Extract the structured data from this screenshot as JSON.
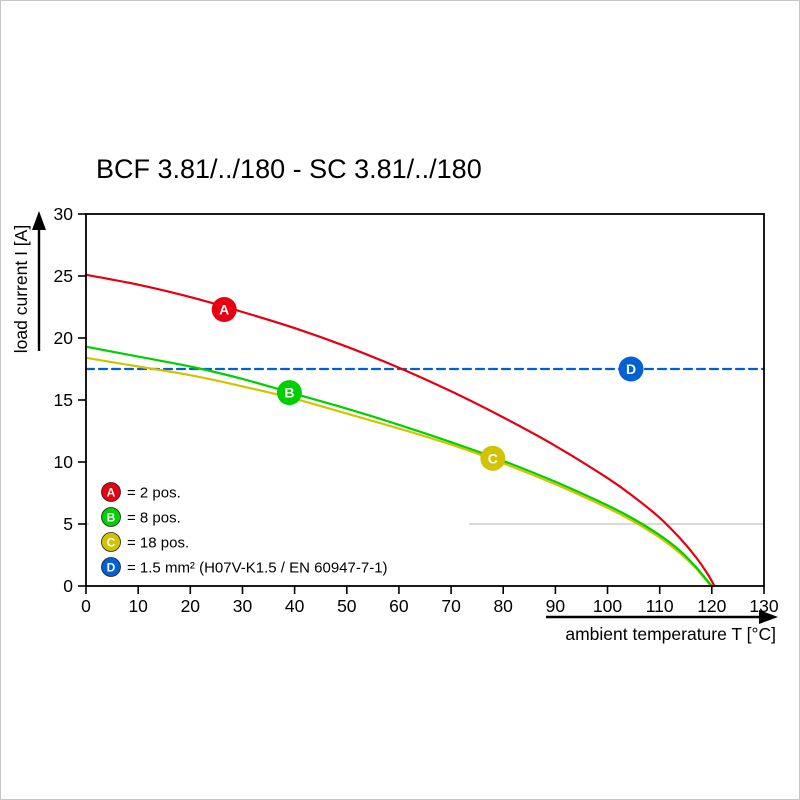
{
  "page": {
    "background": "#ffffff",
    "frame_color": "#c8c8c8"
  },
  "chart_data": {
    "type": "line",
    "title": "BCF 3.81/../180 - SC 3.81/../180",
    "xlabel": "ambient temperature T [°C]",
    "ylabel": "load current I [A]",
    "xlim": [
      0,
      130
    ],
    "ylim": [
      0,
      30
    ],
    "xticks": [
      0,
      10,
      20,
      30,
      40,
      50,
      60,
      70,
      80,
      90,
      100,
      110,
      120,
      130
    ],
    "yticks": [
      0,
      5,
      10,
      15,
      20,
      25,
      30
    ],
    "grid": "single light horizontal gridline at 5 A",
    "gridline_y": 5,
    "gridline_color": "#b4b4b4",
    "series": [
      {
        "id": "A",
        "name": "2 pos.",
        "color": "#e60012",
        "dashed": false,
        "marker_at": {
          "x": 26.5,
          "y": 22.3
        },
        "points": [
          [
            0,
            25.1
          ],
          [
            10,
            24.3
          ],
          [
            20,
            23.3
          ],
          [
            30,
            22.1
          ],
          [
            40,
            20.8
          ],
          [
            50,
            19.3
          ],
          [
            60,
            17.6
          ],
          [
            70,
            15.7
          ],
          [
            80,
            13.6
          ],
          [
            90,
            11.3
          ],
          [
            100,
            8.7
          ],
          [
            105,
            7.2
          ],
          [
            110,
            5.5
          ],
          [
            114,
            3.8
          ],
          [
            117,
            2.3
          ],
          [
            119,
            1.1
          ],
          [
            120.5,
            0
          ]
        ]
      },
      {
        "id": "B",
        "name": "8 pos.",
        "color": "#00cf00",
        "dashed": false,
        "marker_at": {
          "x": 39,
          "y": 15.6
        },
        "points": [
          [
            0,
            19.3
          ],
          [
            10,
            18.5
          ],
          [
            20,
            17.7
          ],
          [
            30,
            16.7
          ],
          [
            40,
            15.5
          ],
          [
            50,
            14.3
          ],
          [
            60,
            13
          ],
          [
            70,
            11.6
          ],
          [
            80,
            10.1
          ],
          [
            90,
            8.4
          ],
          [
            100,
            6.5
          ],
          [
            105,
            5.4
          ],
          [
            110,
            4.1
          ],
          [
            114,
            2.8
          ],
          [
            117,
            1.5
          ],
          [
            119,
            0.5
          ],
          [
            120,
            0
          ]
        ]
      },
      {
        "id": "C",
        "name": "18 pos.",
        "color": "#d2c300",
        "dashed": false,
        "marker_at": {
          "x": 78,
          "y": 10.3
        },
        "points": [
          [
            0,
            18.4
          ],
          [
            10,
            17.7
          ],
          [
            20,
            17
          ],
          [
            30,
            16.1
          ],
          [
            40,
            15.1
          ],
          [
            50,
            13.9
          ],
          [
            60,
            12.7
          ],
          [
            70,
            11.4
          ],
          [
            80,
            9.9
          ],
          [
            90,
            8.2
          ],
          [
            100,
            6.3
          ],
          [
            105,
            5.2
          ],
          [
            110,
            3.9
          ],
          [
            114,
            2.6
          ],
          [
            117,
            1.4
          ],
          [
            119.8,
            0
          ]
        ]
      },
      {
        "id": "D",
        "name": "1.5 mm² (H07V-K1.5 / EN 60947-7-1)",
        "color": "#0060d4",
        "dashed": true,
        "marker_at": {
          "x": 104.5,
          "y": 17.5
        },
        "points": [
          [
            0,
            17.5
          ],
          [
            130,
            17.5
          ]
        ]
      }
    ],
    "legend": {
      "position": "bottom-left",
      "entries": [
        {
          "id": "A",
          "color": "#e60012",
          "label": "= 2 pos."
        },
        {
          "id": "B",
          "color": "#00cf00",
          "label": "= 8 pos."
        },
        {
          "id": "C",
          "color": "#d2c300",
          "label": "= 18 pos."
        },
        {
          "id": "D",
          "color": "#0060d4",
          "label": "= 1.5 mm² (H07V-K1.5 / EN 60947-7-1)"
        }
      ]
    }
  }
}
